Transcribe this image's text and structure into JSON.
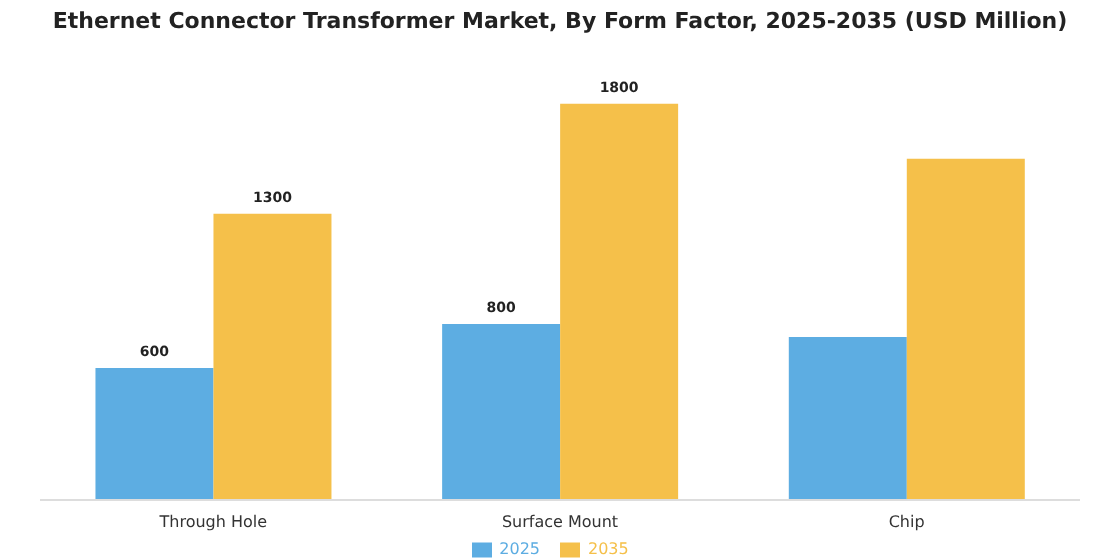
{
  "chart_data": {
    "type": "bar",
    "title": "Ethernet Connector Transformer Market, By Form Factor, 2025-2035 (USD Million)",
    "categories": [
      "Through Hole",
      "Surface Mount",
      "Chip"
    ],
    "series": [
      {
        "name": "2025",
        "color": "#5dade2",
        "values": [
          600,
          800,
          740
        ],
        "value_labels": [
          "600",
          "800",
          null
        ]
      },
      {
        "name": "2035",
        "color": "#f5c04a",
        "values": [
          1300,
          1800,
          1550
        ],
        "value_labels": [
          "1300",
          "1800",
          null
        ]
      }
    ],
    "legend": "bottom",
    "grid": false
  }
}
